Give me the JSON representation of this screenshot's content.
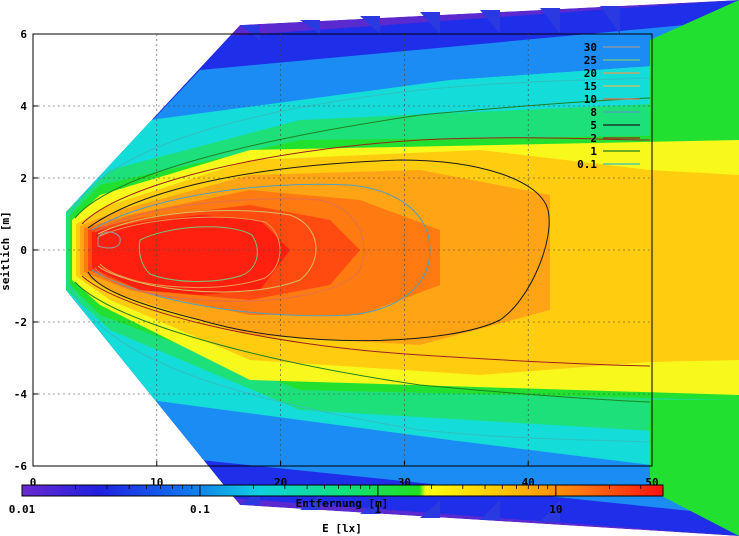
{
  "chart_data": {
    "type": "heatmap",
    "xlabel": "Entfernung [m]",
    "ylabel": "seitlich [m]",
    "xlim": [
      0,
      50
    ],
    "ylim": [
      -6,
      6
    ],
    "x_ticks": [
      "0",
      "10",
      "20",
      "30",
      "40",
      "50"
    ],
    "y_ticks": [
      "6",
      "4",
      "2",
      "0",
      "-2",
      "-4",
      "-6"
    ],
    "grid": true,
    "colorbar": {
      "label": "E [lx]",
      "scale": "log",
      "range": [
        0.01,
        40
      ],
      "ticks": [
        "0.01",
        "0.1",
        "1",
        "10"
      ]
    },
    "contour_levels": [
      {
        "level": "30",
        "color": "#9a9aa0"
      },
      {
        "level": "25",
        "color": "#78c878"
      },
      {
        "level": "20",
        "color": "#ee9a50"
      },
      {
        "level": "15",
        "color": "#d8c060"
      },
      {
        "level": "10",
        "color": "#e07050"
      },
      {
        "level": "8",
        "color": "#50a0c0"
      },
      {
        "level": "5",
        "color": "#1a1a1a"
      },
      {
        "level": "2",
        "color": "#a02020"
      },
      {
        "level": "1",
        "color": "#208020"
      },
      {
        "level": "0.1",
        "color": "#30c0c0"
      }
    ]
  }
}
